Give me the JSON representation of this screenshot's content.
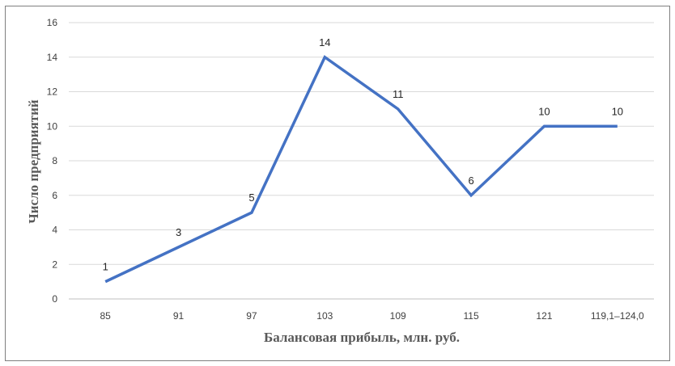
{
  "chart_data": {
    "type": "line",
    "categories": [
      "85",
      "91",
      "97",
      "103",
      "109",
      "115",
      "121",
      "119,1–124,0"
    ],
    "values": [
      1,
      3,
      5,
      14,
      11,
      6,
      10,
      10
    ],
    "data_labels": [
      "1",
      "3",
      "5",
      "14",
      "11",
      "6",
      "10",
      "10"
    ],
    "xlabel": "Балансовая прибыль, млн. руб.",
    "ylabel": "Число предприятий",
    "ylim": [
      0,
      16
    ],
    "yticks": [
      0,
      2,
      4,
      6,
      8,
      10,
      12,
      14,
      16
    ],
    "grid": true,
    "line_color": "#4472c4"
  }
}
